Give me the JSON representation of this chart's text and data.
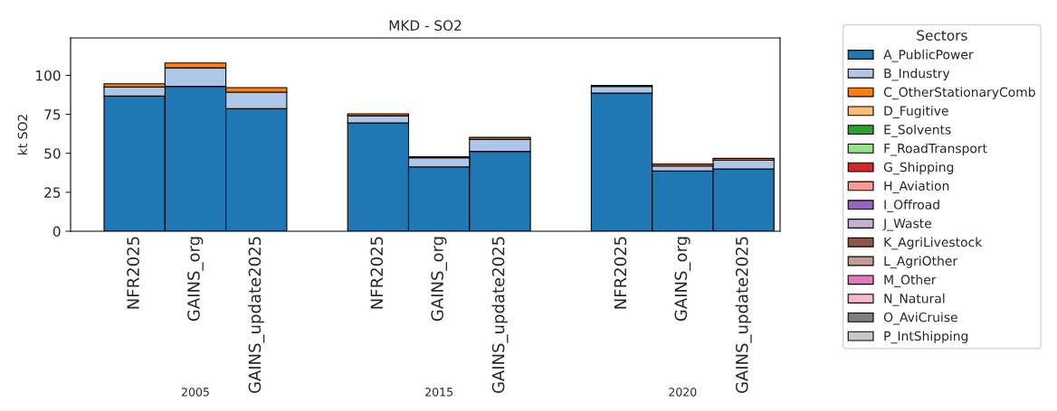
{
  "chart_data": {
    "type": "bar",
    "stacked": true,
    "title": "MKD - SO2",
    "ylabel": "kt SO2",
    "legend_title": "Sectors",
    "legend": "right",
    "grid": false,
    "categories": [
      "NFR2025",
      "GAINS_org",
      "GAINS_update2025",
      null,
      "NFR2025",
      "GAINS_org",
      "GAINS_update2025",
      null,
      "NFR2025",
      "GAINS_org",
      "GAINS_update2025"
    ],
    "annotations": [
      "2005",
      "2015",
      "2020"
    ],
    "ylim": [
      0,
      124
    ],
    "yticks": [
      0,
      25,
      50,
      75,
      100
    ],
    "series": [
      {
        "name": "A_PublicPower",
        "color": "#1f77b4",
        "values": [
          86.7,
          92.9,
          78.6,
          null,
          69.5,
          41.3,
          51.2,
          null,
          88.6,
          38.6,
          40.0
        ]
      },
      {
        "name": "B_Industry",
        "color": "#aec7e8",
        "values": [
          5.8,
          11.9,
          10.6,
          null,
          4.6,
          5.8,
          7.7,
          null,
          4.3,
          3.3,
          5.6
        ]
      },
      {
        "name": "C_OtherStationaryComb",
        "color": "#ff7f0e",
        "values": [
          2.1,
          3.1,
          2.9,
          null,
          1.2,
          0.6,
          1.3,
          null,
          0.7,
          1.2,
          1.1
        ]
      },
      {
        "name": "D_Fugitive",
        "color": "#ffbb78",
        "values": [
          0,
          0,
          0,
          null,
          0,
          0,
          0,
          null,
          0,
          0,
          0
        ]
      },
      {
        "name": "E_Solvents",
        "color": "#2ca02c",
        "values": [
          0,
          0,
          0,
          null,
          0,
          0,
          0,
          null,
          0,
          0,
          0
        ]
      },
      {
        "name": "F_RoadTransport",
        "color": "#98df8a",
        "values": [
          0,
          0,
          0,
          null,
          0,
          0,
          0,
          null,
          0,
          0,
          0
        ]
      },
      {
        "name": "G_Shipping",
        "color": "#d62728",
        "values": [
          0,
          0,
          0,
          null,
          0,
          0,
          0,
          null,
          0,
          0,
          0
        ]
      },
      {
        "name": "H_Aviation",
        "color": "#ff9896",
        "values": [
          0,
          0,
          0,
          null,
          0,
          0,
          0,
          null,
          0,
          0,
          0
        ]
      },
      {
        "name": "I_Offroad",
        "color": "#9467bd",
        "values": [
          0,
          0,
          0,
          null,
          0,
          0,
          0,
          null,
          0,
          0,
          0
        ]
      },
      {
        "name": "J_Waste",
        "color": "#c5b0d5",
        "values": [
          0,
          0,
          0,
          null,
          0,
          0,
          0,
          null,
          0,
          0,
          0
        ]
      },
      {
        "name": "K_AgriLivestock",
        "color": "#8c564b",
        "values": [
          0,
          0,
          0,
          null,
          0,
          0,
          0,
          null,
          0,
          0,
          0
        ]
      },
      {
        "name": "L_AgriOther",
        "color": "#c49c94",
        "values": [
          0,
          0,
          0,
          null,
          0,
          0,
          0,
          null,
          0,
          0,
          0
        ]
      },
      {
        "name": "M_Other",
        "color": "#e377c2",
        "values": [
          0,
          0,
          0,
          null,
          0,
          0,
          0,
          null,
          0,
          0,
          0
        ]
      },
      {
        "name": "N_Natural",
        "color": "#f7b6d2",
        "values": [
          0,
          0,
          0,
          null,
          0,
          0,
          0,
          null,
          0,
          0,
          0
        ]
      },
      {
        "name": "O_AviCruise",
        "color": "#7f7f7f",
        "values": [
          0,
          0,
          0,
          null,
          0,
          0,
          0,
          null,
          0,
          0,
          0
        ]
      },
      {
        "name": "P_IntShipping",
        "color": "#c7c7c7",
        "values": [
          0,
          0,
          0,
          null,
          0,
          0,
          0,
          null,
          0,
          0,
          0
        ]
      }
    ]
  }
}
